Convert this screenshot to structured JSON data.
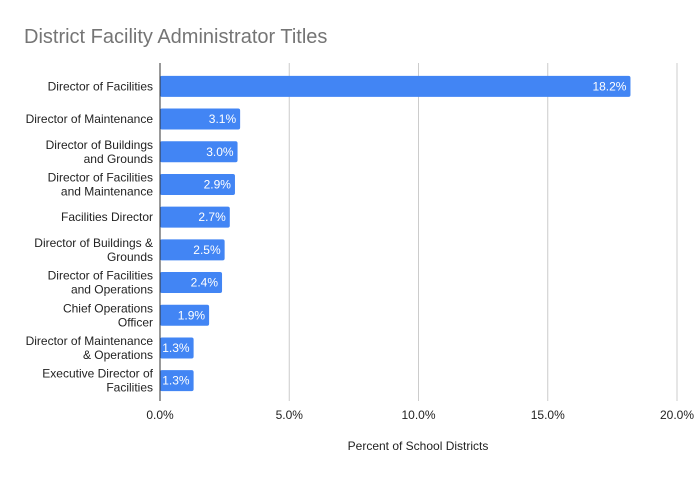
{
  "chart_data": {
    "type": "bar",
    "orientation": "horizontal",
    "title": "District Facility Administrator Titles",
    "xlabel": "Percent of School Districts",
    "ylabel": "",
    "categories": [
      [
        "Director of Facilities"
      ],
      [
        "Director of Maintenance"
      ],
      [
        "Director of Buildings",
        "and Grounds"
      ],
      [
        "Director of Facilities",
        "and Maintenance"
      ],
      [
        "Facilities Director"
      ],
      [
        "Director of Buildings &",
        "Grounds"
      ],
      [
        "Director of Facilities",
        "and Operations"
      ],
      [
        "Chief Operations",
        "Officer"
      ],
      [
        "Director of Maintenance",
        "& Operations"
      ],
      [
        "Executive Director of",
        "Facilities"
      ]
    ],
    "values": [
      18.2,
      3.1,
      3.0,
      2.9,
      2.7,
      2.5,
      2.4,
      1.9,
      1.3,
      1.3
    ],
    "data_labels": [
      "18.2%",
      "3.1%",
      "3.0%",
      "2.9%",
      "2.7%",
      "2.5%",
      "2.4%",
      "1.9%",
      "1.3%",
      "1.3%"
    ],
    "xlim": [
      0,
      20
    ],
    "xticks": [
      0,
      5,
      10,
      15,
      20
    ],
    "xtick_labels": [
      "0.0%",
      "5.0%",
      "10.0%",
      "15.0%",
      "20.0%"
    ],
    "grid": true,
    "legend": "none",
    "colors": {
      "bar": "#4285f4",
      "title": "#757575",
      "grid": "#cccccc",
      "axis": "#333333",
      "text": "#222222"
    }
  }
}
